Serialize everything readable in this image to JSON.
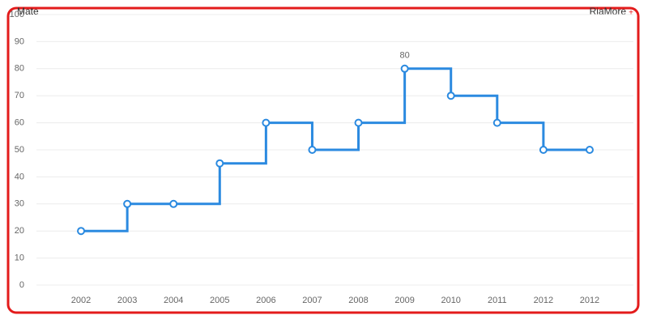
{
  "chart_data": {
    "type": "step",
    "brand_left": "Mate",
    "brand_right": "RiaMore",
    "categories": [
      "2002",
      "2003",
      "2004",
      "2005",
      "2006",
      "2007",
      "2008",
      "2009",
      "2010",
      "2011",
      "2012",
      "2012"
    ],
    "series": [
      {
        "color": "#2b8ae0",
        "values": [
          20,
          30,
          30,
          45,
          60,
          50,
          60,
          80,
          70,
          60,
          50,
          50
        ],
        "value_labels": [
          null,
          null,
          null,
          null,
          null,
          null,
          null,
          "80",
          null,
          null,
          null,
          null
        ]
      }
    ],
    "ylim": [
      0,
      100
    ],
    "yticks": [
      0,
      10,
      20,
      30,
      40,
      50,
      60,
      70,
      80,
      90,
      100
    ],
    "grid": true
  }
}
